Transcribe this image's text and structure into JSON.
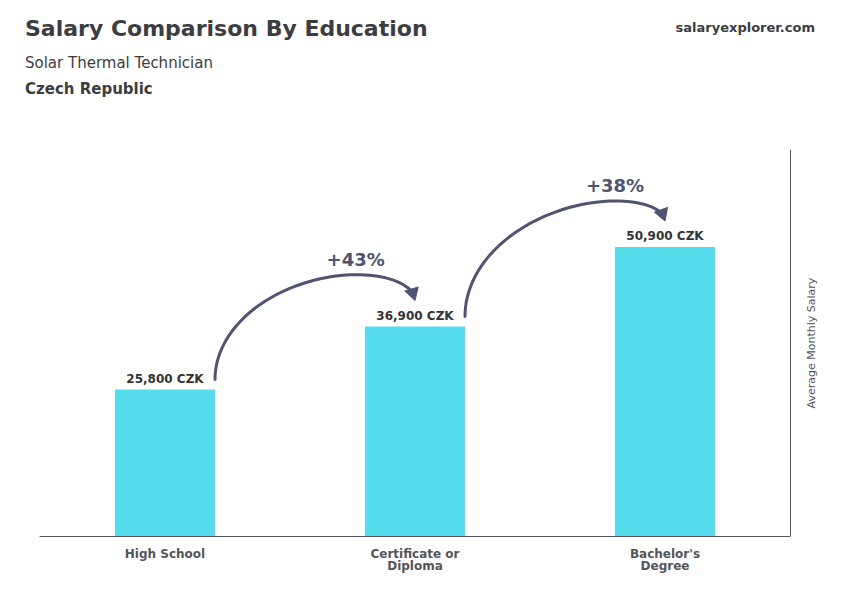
{
  "chart_data": {
    "type": "bar",
    "title": "Salary Comparison By Education",
    "subtitle": [
      "Solar Thermal Technician",
      "Czech Republic"
    ],
    "ylabel": "Average Monthly Salary",
    "categories": [
      "High School",
      "Certificate or\nDiploma",
      "Bachelor's\nDegree"
    ],
    "values": [
      25800,
      36900,
      50900
    ],
    "value_labels": [
      "25,800 CZK",
      "36,900 CZK",
      "50,900 CZK"
    ],
    "data_labels": true,
    "color": "#55ddee",
    "ylim": [
      0,
      68000
    ],
    "tick_labels": "x",
    "grid": false,
    "annotations": [
      {
        "text": "salary"
      },
      {
        "text": "explorer.com"
      },
      {
        "text": "+43%",
        "from": "High School",
        "to": "Certificate or\nDiploma"
      },
      {
        "text": "+38%",
        "from": "Certificate or\nDiploma",
        "to": "Bachelor's\nDegree"
      }
    ]
  }
}
